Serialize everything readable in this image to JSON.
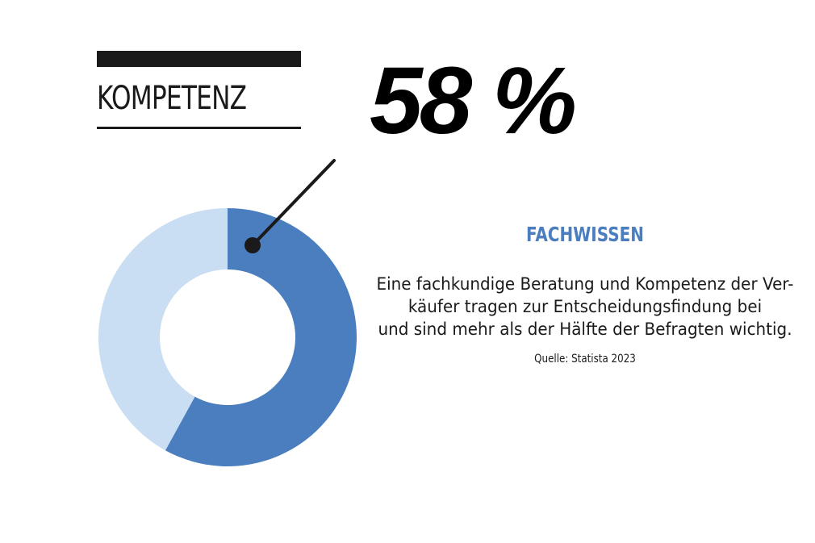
{
  "title": "KOMPETENZ",
  "value_label": "58 %",
  "subtitle": "FACHWISSEN",
  "description_lines": [
    "Eine fachkundige Beratung und Kompetenz der Ver-",
    "käufer tragen zur Entscheidungsfindung bei",
    "und sind mehr als der Hälfte der Befragten wichtig."
  ],
  "source": "Quelle: Statista 2023",
  "colors": {
    "primary": "#4a7ebf",
    "secondary": "#c9ddf3",
    "text": "#1a1a1a",
    "accent_text": "#4a7ebf"
  },
  "chart_data": {
    "type": "pie",
    "donut": true,
    "slices": [
      {
        "value": 58,
        "color": "#4a7ebf"
      },
      {
        "value": 42,
        "color": "#c9ddf3"
      }
    ]
  }
}
